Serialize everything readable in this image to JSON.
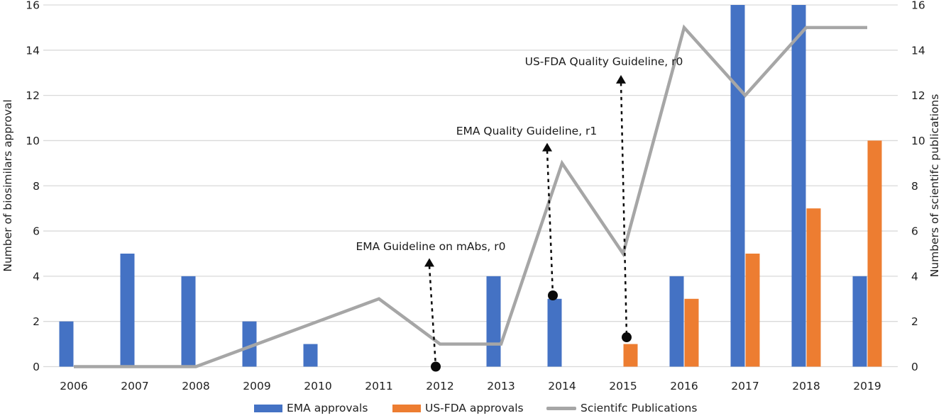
{
  "chart_data": {
    "type": "bar",
    "title": "",
    "categories": [
      "2006",
      "2007",
      "2008",
      "2009",
      "2010",
      "2011",
      "2012",
      "2013",
      "2014",
      "2015",
      "2016",
      "2017",
      "2018",
      "2019"
    ],
    "series": [
      {
        "name": "EMA approvals",
        "type": "bar",
        "color": "#4472C4",
        "values": [
          2,
          5,
          4,
          2,
          1,
          0,
          0,
          4,
          3,
          0,
          4,
          16,
          16,
          4
        ]
      },
      {
        "name": "US-FDA approvals",
        "type": "bar",
        "color": "#ED7D31",
        "values": [
          0,
          0,
          0,
          0,
          0,
          0,
          0,
          0,
          0,
          1,
          3,
          5,
          7,
          10
        ]
      },
      {
        "name": "Scientifc Publications",
        "type": "line",
        "color": "#A6A6A6",
        "values": [
          0,
          0,
          0,
          1,
          2,
          3,
          1,
          1,
          9,
          5,
          15,
          12,
          15,
          15
        ]
      }
    ],
    "left_axis": {
      "label": "Number of biosimilars approval",
      "min": 0,
      "max": 16,
      "step": 2
    },
    "right_axis": {
      "label": "Numbers of scientifc publications",
      "min": 0,
      "max": 16,
      "step": 2
    },
    "grid": true,
    "legend_position": "bottom",
    "annotations": [
      {
        "text": "EMA Guideline on mAbs, r0",
        "category": "2012",
        "dot_value": 0,
        "tip_value": 4.8,
        "dot_dx": -6,
        "tip_dx": -15,
        "text_x": 607,
        "text_y": 353
      },
      {
        "text": "EMA Quality Guideline, r1",
        "category": "2014",
        "dot_value": 3.15,
        "tip_value": 9.9,
        "dot_dx": -13,
        "tip_dx": -21,
        "text_x": 742,
        "text_y": 190
      },
      {
        "text": "US-FDA Quality Guideline, r0",
        "category": "2015",
        "dot_value": 1.3,
        "tip_value": 12.9,
        "dot_dx": 5,
        "tip_dx": -3,
        "text_x": 851,
        "text_y": 92
      }
    ],
    "colors": {
      "grid": "#D9D9D9",
      "text": "#212121",
      "annotation": "#0a0a0a"
    }
  },
  "legend": {
    "items": [
      {
        "label": "EMA approvals",
        "swatch": "rect",
        "color": "#4472C4",
        "x": 358
      },
      {
        "label": "US-FDA approvals",
        "swatch": "rect",
        "color": "#ED7D31",
        "x": 553
      },
      {
        "label": "Scientifc Publications",
        "swatch": "line",
        "color": "#A6A6A6",
        "x": 770
      }
    ]
  }
}
